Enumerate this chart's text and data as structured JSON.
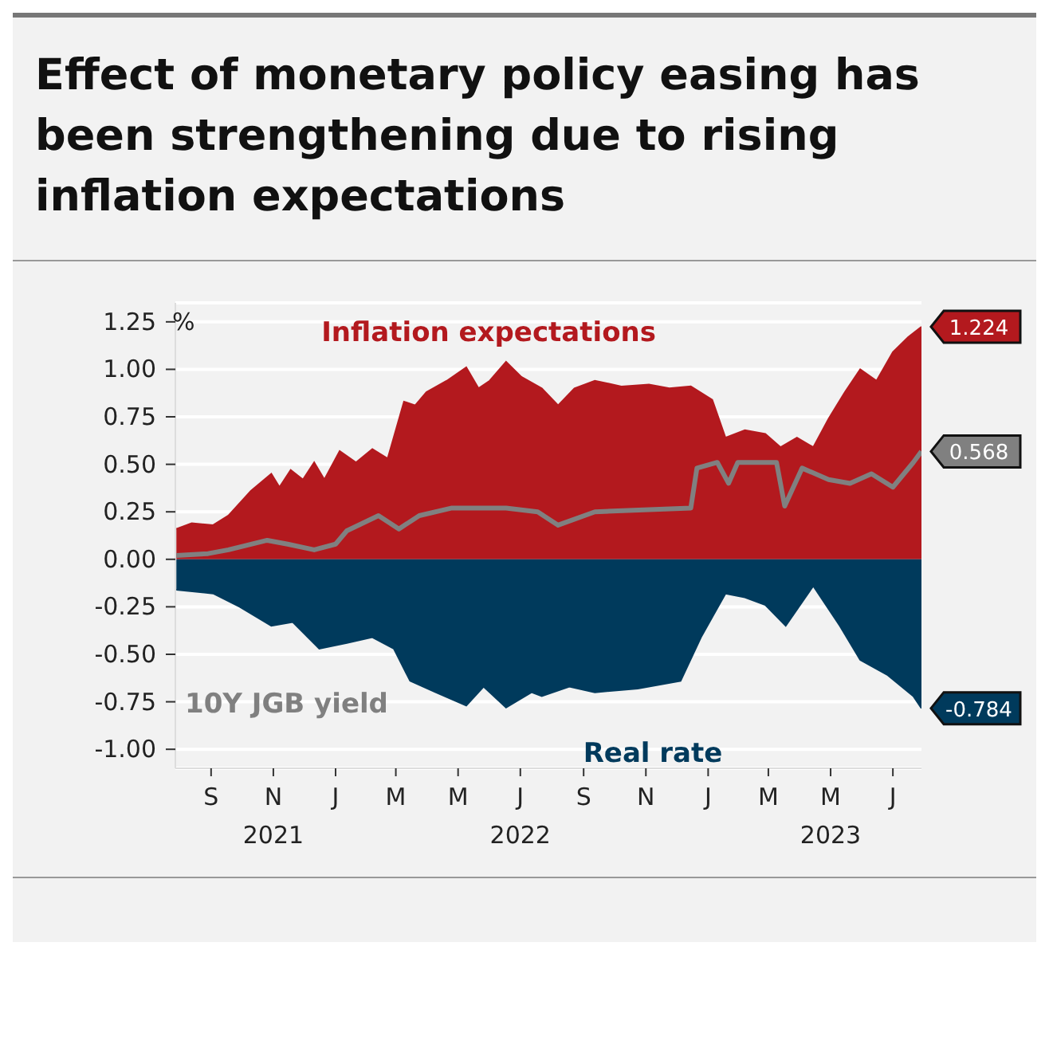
{
  "chart_data": {
    "type": "area",
    "title": "Effect of monetary policy easing has been strengthening due to rising inflation expectations",
    "ylabel": "%",
    "xlim": [
      "2021-07-28",
      "2023-07-29"
    ],
    "xticks": [
      {
        "value": "2021-09-01",
        "label": "S"
      },
      {
        "value": "2021-11-01",
        "label": "N\n2021"
      },
      {
        "value": "2022-01-01",
        "label": "J"
      },
      {
        "value": "2022-03-01",
        "label": "M"
      },
      {
        "value": "2022-05-01",
        "label": "M"
      },
      {
        "value": "2022-07-01",
        "label": "J\n2022"
      },
      {
        "value": "2022-09-01",
        "label": "S"
      },
      {
        "value": "2022-11-01",
        "label": "N"
      },
      {
        "value": "2023-01-01",
        "label": "J"
      },
      {
        "value": "2023-03-01",
        "label": "M"
      },
      {
        "value": "2023-05-01",
        "label": "M\n2023"
      },
      {
        "value": "2023-07-01",
        "label": "J"
      }
    ],
    "ylim": [
      -1.1,
      1.35
    ],
    "yticks": [
      {
        "value": -1,
        "label": "-1.00"
      },
      {
        "value": -0.75,
        "label": "-0.75"
      },
      {
        "value": -0.5,
        "label": "-0.50"
      },
      {
        "value": -0.25,
        "label": "-0.25"
      },
      {
        "value": 0,
        "label": "0.00"
      },
      {
        "value": 0.25,
        "label": "0.25"
      },
      {
        "value": 0.5,
        "label": "0.50"
      },
      {
        "value": 0.75,
        "label": "0.75"
      },
      {
        "value": 1,
        "label": "1.00"
      },
      {
        "value": 1.25,
        "label": "1.25"
      }
    ],
    "grid": "y",
    "legend": false,
    "series": [
      {
        "name": "Inflation expectations",
        "color": "#b3191e",
        "x": [
          "2021-07-29",
          "2021-08-13",
          "2021-09-03",
          "2021-09-18",
          "2021-10-10",
          "2021-10-30",
          "2021-11-07",
          "2021-11-18",
          "2021-11-30",
          "2021-12-11",
          "2021-12-21",
          "2022-01-05",
          "2022-01-21",
          "2022-02-06",
          "2022-02-21",
          "2022-03-09",
          "2022-03-20",
          "2022-03-31",
          "2022-04-20",
          "2022-05-09",
          "2022-05-21",
          "2022-06-01",
          "2022-06-17",
          "2022-07-02",
          "2022-07-22",
          "2022-08-07",
          "2022-08-23",
          "2022-09-12",
          "2022-10-08",
          "2022-11-04",
          "2022-11-24",
          "2022-12-15",
          "2023-01-05",
          "2023-01-18",
          "2023-02-06",
          "2023-02-26",
          "2023-03-13",
          "2023-03-29",
          "2023-04-14",
          "2023-04-29",
          "2023-05-15",
          "2023-05-30",
          "2023-06-15",
          "2023-07-01",
          "2023-07-16",
          "2023-07-29"
        ],
        "values": [
          0.16,
          0.19,
          0.18,
          0.23,
          0.36,
          0.45,
          0.38,
          0.47,
          0.42,
          0.51,
          0.42,
          0.57,
          0.51,
          0.58,
          0.53,
          0.83,
          0.81,
          0.88,
          0.94,
          1.01,
          0.9,
          0.94,
          1.04,
          0.96,
          0.9,
          0.81,
          0.9,
          0.94,
          0.91,
          0.92,
          0.9,
          0.91,
          0.84,
          0.64,
          0.68,
          0.66,
          0.59,
          0.64,
          0.59,
          0.74,
          0.88,
          1.0,
          0.94,
          1.09,
          1.17,
          1.224
        ],
        "value_labels": [
          null,
          null,
          null,
          null,
          null,
          null,
          null,
          null,
          null,
          null,
          null,
          null,
          null,
          null,
          null,
          null,
          null,
          null,
          null,
          null,
          null,
          null,
          null,
          null,
          null,
          null,
          null,
          null,
          null,
          null,
          null,
          null,
          null,
          null,
          null,
          null,
          null,
          null,
          null,
          null,
          null,
          null,
          null,
          null,
          null,
          "1.224"
        ]
      },
      {
        "name": "Real rate",
        "color": "#003a5c",
        "x": [
          "2021-07-29",
          "2021-09-03",
          "2021-09-29",
          "2021-10-30",
          "2021-11-20",
          "2021-12-16",
          "2022-01-12",
          "2022-02-06",
          "2022-02-27",
          "2022-03-15",
          "2022-04-09",
          "2022-05-09",
          "2022-05-26",
          "2022-06-17",
          "2022-07-12",
          "2022-07-22",
          "2022-08-18",
          "2022-09-12",
          "2022-10-24",
          "2022-12-05",
          "2022-12-25",
          "2023-01-18",
          "2023-02-06",
          "2023-02-26",
          "2023-03-18",
          "2023-04-14",
          "2023-05-10",
          "2023-05-30",
          "2023-06-26",
          "2023-07-21",
          "2023-07-29"
        ],
        "values": [
          -0.16,
          -0.18,
          -0.25,
          -0.35,
          -0.33,
          -0.47,
          -0.44,
          -0.41,
          -0.47,
          -0.64,
          -0.7,
          -0.77,
          -0.67,
          -0.78,
          -0.7,
          -0.72,
          -0.67,
          -0.7,
          -0.68,
          -0.64,
          -0.41,
          -0.18,
          -0.2,
          -0.24,
          -0.35,
          -0.14,
          -0.35,
          -0.53,
          -0.61,
          -0.72,
          -0.784
        ],
        "value_labels": [
          null,
          null,
          null,
          null,
          null,
          null,
          null,
          null,
          null,
          null,
          null,
          null,
          null,
          null,
          null,
          null,
          null,
          null,
          null,
          null,
          null,
          null,
          null,
          null,
          null,
          null,
          null,
          null,
          null,
          null,
          "-0.784"
        ]
      },
      {
        "name": "10Y JGB yield",
        "type": "line",
        "color": "#808080",
        "x": [
          "2021-07-29",
          "2021-08-29",
          "2021-09-18",
          "2021-10-26",
          "2021-11-15",
          "2021-12-11",
          "2022-01-01",
          "2022-01-12",
          "2022-02-12",
          "2022-03-04",
          "2022-03-24",
          "2022-04-25",
          "2022-06-17",
          "2022-07-18",
          "2022-08-07",
          "2022-09-12",
          "2022-12-15",
          "2022-12-21",
          "2023-01-10",
          "2023-01-21",
          "2023-01-30",
          "2023-03-09",
          "2023-03-17",
          "2023-04-03",
          "2023-04-29",
          "2023-05-20",
          "2023-06-10",
          "2023-07-01",
          "2023-07-21",
          "2023-07-29"
        ],
        "values": [
          0.02,
          0.03,
          0.05,
          0.1,
          0.08,
          0.05,
          0.08,
          0.15,
          0.23,
          0.16,
          0.23,
          0.27,
          0.27,
          0.25,
          0.18,
          0.25,
          0.27,
          0.48,
          0.51,
          0.4,
          0.51,
          0.51,
          0.28,
          0.48,
          0.42,
          0.4,
          0.45,
          0.38,
          0.51,
          0.568
        ],
        "value_labels": [
          null,
          null,
          null,
          null,
          null,
          null,
          null,
          null,
          null,
          null,
          null,
          null,
          null,
          null,
          null,
          null,
          null,
          null,
          null,
          null,
          null,
          null,
          null,
          null,
          null,
          null,
          null,
          null,
          null,
          "0.568"
        ]
      }
    ]
  }
}
